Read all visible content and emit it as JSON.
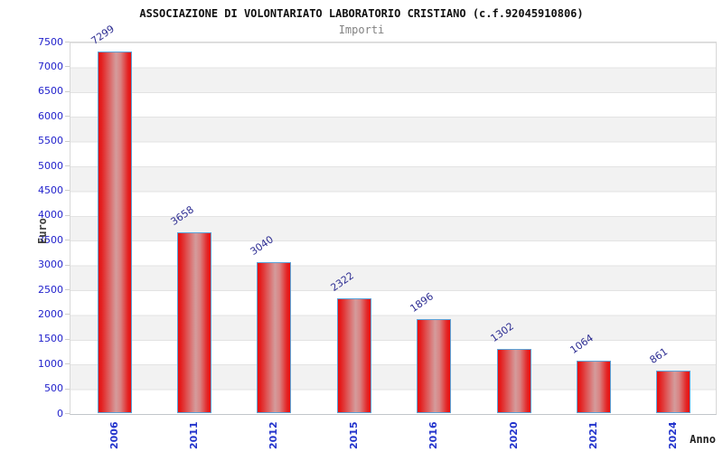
{
  "chart_data": {
    "type": "bar",
    "title": "ASSOCIAZIONE DI VOLONTARIATO LABORATORIO CRISTIANO (c.f.92045910806)",
    "subtitle": "Importi",
    "xlabel": "Anno",
    "ylabel": "Euro",
    "categories": [
      "2006",
      "2011",
      "2012",
      "2015",
      "2016",
      "2020",
      "2021",
      "2024"
    ],
    "values": [
      7299,
      3658,
      3040,
      2322,
      1896,
      1302,
      1064,
      861
    ],
    "ylim": [
      0,
      7500
    ],
    "ytick_step": 500,
    "legend": "none",
    "grid": "horizontal gridlines every 500 with alternating white/gray bands"
  },
  "colors": {
    "bar_edge": "#ea0f0f",
    "bar_center_highlight": "#d49c9c",
    "bar_border": "#5ba3d9",
    "y_tick_text": "#2222cc",
    "x_tick_text": "#2233cc",
    "value_label_text": "#2d2d92",
    "band_gray": "#f2f2f2",
    "gridline": "#e3e3e3",
    "title_text": "#111111",
    "subtitle_text": "#828282"
  }
}
